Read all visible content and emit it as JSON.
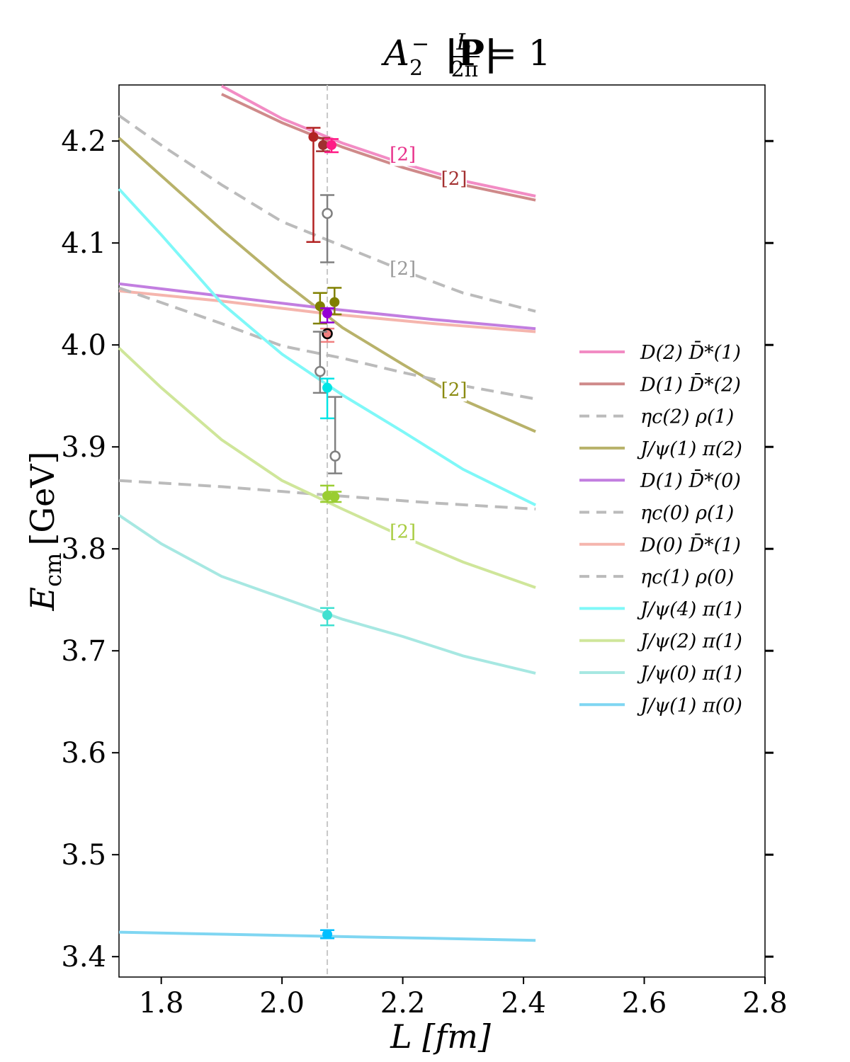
{
  "chart_data": {
    "type": "line",
    "title": "A₂⁻ |P| L/2π = 1",
    "title_parts": {
      "irrep": "A",
      "irrep_sub": "2",
      "irrep_sup": "−",
      "momentum": "|P|",
      "frac_num": "L",
      "frac_den": "2π",
      "rhs": "= 1"
    },
    "xlabel": "L [fm]",
    "ylabel": "E",
    "ylabel_sub": "cm",
    "ylabel_unit": "[GeV]",
    "xlim": [
      1.73,
      2.8
    ],
    "ylim": [
      3.38,
      4.255
    ],
    "xticks": [
      1.8,
      2.0,
      2.2,
      2.4,
      2.6,
      2.8
    ],
    "xtick_labels": [
      "1.8",
      "2.0",
      "2.2",
      "2.4",
      "2.6",
      "2.8"
    ],
    "yticks": [
      3.4,
      3.5,
      3.6,
      3.7,
      3.8,
      3.9,
      4.0,
      4.1,
      4.2
    ],
    "ytick_labels": [
      "3.4",
      "3.5",
      "3.6",
      "3.7",
      "3.8",
      "3.9",
      "4.0",
      "4.1",
      "4.2"
    ],
    "reference_L": 2.075,
    "grid": false,
    "legend_position": "right",
    "series": [
      {
        "name": "D(2) D̄*(1)",
        "color": "#f28cc4",
        "dashed": false,
        "points": [
          [
            1.9,
            4.254
          ],
          [
            2.0,
            4.222
          ],
          [
            2.1,
            4.198
          ],
          [
            2.2,
            4.178
          ],
          [
            2.3,
            4.161
          ],
          [
            2.42,
            4.146
          ]
        ],
        "multiplicity_label": "[2]",
        "multiplicity_at": [
          2.2,
          4.188
        ],
        "multiplicity_color": "#e8308a"
      },
      {
        "name": "D(1) D̄*(2)",
        "color": "#cf8a8a",
        "dashed": false,
        "points": [
          [
            1.9,
            4.246
          ],
          [
            2.0,
            4.218
          ],
          [
            2.1,
            4.194
          ],
          [
            2.2,
            4.174
          ],
          [
            2.3,
            4.157
          ],
          [
            2.42,
            4.142
          ]
        ],
        "multiplicity_label": "[2]",
        "multiplicity_at": [
          2.285,
          4.164
        ],
        "multiplicity_color": "#a33030"
      },
      {
        "name": "ηc(2) ρ(1)",
        "color": "#bbbbbb",
        "dashed": true,
        "points": [
          [
            1.73,
            4.225
          ],
          [
            1.8,
            4.196
          ],
          [
            1.9,
            4.157
          ],
          [
            2.0,
            4.121
          ],
          [
            2.1,
            4.097
          ],
          [
            2.2,
            4.073
          ],
          [
            2.3,
            4.051
          ],
          [
            2.42,
            4.033
          ]
        ],
        "multiplicity_label": "[2]",
        "multiplicity_at": [
          2.2,
          4.076
        ],
        "multiplicity_color": "#999999"
      },
      {
        "name": "J/ψ(1) π(2)",
        "color": "#b8b26a",
        "dashed": false,
        "points": [
          [
            1.73,
            4.203
          ],
          [
            1.8,
            4.166
          ],
          [
            1.9,
            4.113
          ],
          [
            2.0,
            4.063
          ],
          [
            2.1,
            4.017
          ],
          [
            2.2,
            3.981
          ],
          [
            2.3,
            3.946
          ],
          [
            2.42,
            3.915
          ]
        ],
        "multiplicity_label": "[2]",
        "multiplicity_at": [
          2.285,
          3.957
        ],
        "multiplicity_color": "#8a8a10"
      },
      {
        "name": "D(1) D̄*(0)",
        "color": "#c27ee0",
        "dashed": false,
        "points": [
          [
            1.73,
            4.06
          ],
          [
            1.9,
            4.048
          ],
          [
            2.07,
            4.036
          ],
          [
            2.25,
            4.025
          ],
          [
            2.42,
            4.016
          ]
        ]
      },
      {
        "name": "ηc(0) ρ(1)",
        "color": "#bbbbbb",
        "dashed": true,
        "points": [
          [
            1.73,
            3.867
          ],
          [
            1.9,
            3.861
          ],
          [
            2.07,
            3.853
          ],
          [
            2.25,
            3.845
          ],
          [
            2.42,
            3.839
          ]
        ]
      },
      {
        "name": "D(0) D̄*(1)",
        "color": "#f5b5ad",
        "dashed": false,
        "points": [
          [
            1.73,
            4.053
          ],
          [
            1.9,
            4.043
          ],
          [
            2.07,
            4.031
          ],
          [
            2.25,
            4.021
          ],
          [
            2.42,
            4.013
          ]
        ]
      },
      {
        "name": "ηc(1) ρ(0)",
        "color": "#bbbbbb",
        "dashed": true,
        "points": [
          [
            1.73,
            4.056
          ],
          [
            1.9,
            4.021
          ],
          [
            2.0,
            3.999
          ],
          [
            2.1,
            3.987
          ],
          [
            2.2,
            3.973
          ],
          [
            2.3,
            3.96
          ],
          [
            2.42,
            3.947
          ]
        ]
      },
      {
        "name": "J/ψ(4) π(1)",
        "color": "#7ff8f8",
        "dashed": false,
        "points": [
          [
            1.73,
            4.153
          ],
          [
            1.8,
            4.108
          ],
          [
            1.9,
            4.041
          ],
          [
            2.0,
            3.991
          ],
          [
            2.1,
            3.951
          ],
          [
            2.2,
            3.915
          ],
          [
            2.3,
            3.878
          ],
          [
            2.42,
            3.843
          ]
        ]
      },
      {
        "name": "J/ψ(2) π(1)",
        "color": "#cfe69a",
        "dashed": false,
        "points": [
          [
            1.73,
            3.997
          ],
          [
            1.8,
            3.958
          ],
          [
            1.9,
            3.907
          ],
          [
            2.0,
            3.867
          ],
          [
            2.1,
            3.839
          ],
          [
            2.2,
            3.812
          ],
          [
            2.3,
            3.787
          ],
          [
            2.42,
            3.762
          ]
        ],
        "multiplicity_label": "[2]",
        "multiplicity_at": [
          2.2,
          3.818
        ],
        "multiplicity_color": "#a8cc40"
      },
      {
        "name": "J/ψ(0) π(1)",
        "color": "#a7e8e2",
        "dashed": false,
        "points": [
          [
            1.73,
            3.833
          ],
          [
            1.8,
            3.805
          ],
          [
            1.9,
            3.773
          ],
          [
            2.0,
            3.752
          ],
          [
            2.1,
            3.731
          ],
          [
            2.2,
            3.714
          ],
          [
            2.3,
            3.695
          ],
          [
            2.42,
            3.678
          ]
        ]
      },
      {
        "name": "J/ψ(1) π(0)",
        "color": "#7fd6f2",
        "dashed": false,
        "points": [
          [
            1.73,
            3.424
          ],
          [
            1.9,
            3.422
          ],
          [
            2.07,
            3.42
          ],
          [
            2.25,
            3.418
          ],
          [
            2.42,
            3.416
          ]
        ]
      }
    ],
    "data_points": [
      {
        "x": 2.052,
        "y": 4.204,
        "err_low": 0.103,
        "err_high": 0.009,
        "color": "#b22222",
        "open": false
      },
      {
        "x": 2.068,
        "y": 4.196,
        "err_low": 0.006,
        "err_high": 0.007,
        "color": "#a03030",
        "open": false
      },
      {
        "x": 2.082,
        "y": 4.196,
        "err_low": 0.007,
        "err_high": 0.006,
        "color": "#ff1a85",
        "open": false
      },
      {
        "x": 2.075,
        "y": 4.129,
        "err_low": 0.048,
        "err_high": 0.018,
        "color": "#808080",
        "open": true
      },
      {
        "x": 2.063,
        "y": 4.038,
        "err_low": 0.017,
        "err_high": 0.013,
        "color": "#808000",
        "open": false
      },
      {
        "x": 2.087,
        "y": 4.042,
        "err_low": 0.012,
        "err_high": 0.014,
        "color": "#808000",
        "open": false
      },
      {
        "x": 2.075,
        "y": 4.031,
        "err_low": 0.009,
        "err_high": 0.005,
        "color": "#9400d3",
        "open": false
      },
      {
        "x": 2.075,
        "y": 4.011,
        "err_low": 0.008,
        "err_high": 0.005,
        "color": "#f08080",
        "open": true,
        "edge": "#000000"
      },
      {
        "x": 2.063,
        "y": 3.974,
        "err_low": 0.021,
        "err_high": 0.039,
        "color": "#808080",
        "open": true
      },
      {
        "x": 2.075,
        "y": 3.958,
        "err_low": 0.03,
        "err_high": 0.009,
        "color": "#00e5e5",
        "open": false
      },
      {
        "x": 2.088,
        "y": 3.891,
        "err_low": 0.017,
        "err_high": 0.058,
        "color": "#808080",
        "open": true
      },
      {
        "x": 2.075,
        "y": 3.852,
        "err_low": 0.006,
        "err_high": 0.01,
        "color": "#9acd32",
        "open": false
      },
      {
        "x": 2.087,
        "y": 3.851,
        "err_low": 0.005,
        "err_high": 0.005,
        "color": "#9acd32",
        "open": false
      },
      {
        "x": 2.075,
        "y": 3.735,
        "err_low": 0.01,
        "err_high": 0.007,
        "color": "#40e0d0",
        "open": false
      },
      {
        "x": 2.075,
        "y": 3.422,
        "err_low": 0.004,
        "err_high": 0.004,
        "color": "#00bfff",
        "open": false
      }
    ]
  }
}
